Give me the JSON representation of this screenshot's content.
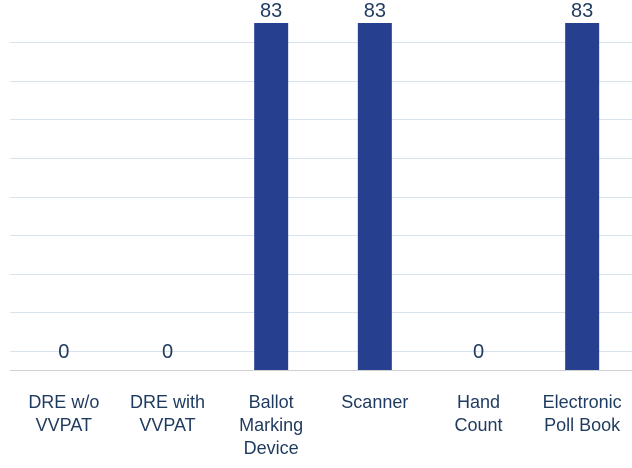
{
  "chart_data": {
    "type": "bar",
    "title": "",
    "xlabel": "",
    "ylabel": "",
    "categories": [
      [
        "DRE w/o",
        "VVPAT"
      ],
      [
        "DRE with",
        "VVPAT"
      ],
      [
        "Ballot",
        "Marking",
        "Device"
      ],
      [
        "Scanner"
      ],
      [
        "Hand",
        "Count"
      ],
      [
        "Electronic",
        "Poll Book"
      ]
    ],
    "values": [
      0,
      0,
      83,
      83,
      0,
      83
    ],
    "value_labels": [
      "0",
      "0",
      "83",
      "83",
      "0",
      "83"
    ],
    "ylim": [
      0,
      83
    ],
    "grid": true,
    "legend": "none",
    "colors": {
      "bar": "#26408F",
      "grid": "#D9E3EE",
      "axis": "#D0D0D0",
      "label": "#1F3A5F"
    }
  }
}
